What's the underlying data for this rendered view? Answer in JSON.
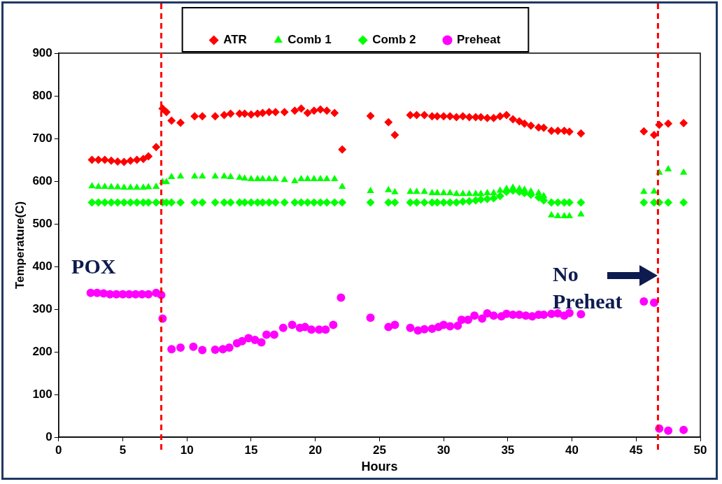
{
  "chart_data": {
    "type": "scatter",
    "xlabel": "Hours",
    "ylabel": "Temperature(C)",
    "xlim": [
      0,
      50
    ],
    "xticks": [
      0,
      5,
      10,
      15,
      20,
      25,
      30,
      35,
      40,
      45,
      50
    ],
    "ylim": [
      0,
      900
    ],
    "yticks": [
      0,
      100,
      200,
      300,
      400,
      500,
      600,
      700,
      800,
      900
    ],
    "grid": false,
    "legend": "top",
    "series": [
      {
        "name": "ATR",
        "color": "#ff0000",
        "marker": "diamond",
        "x": [
          2.6,
          3.1,
          3.6,
          4.1,
          4.6,
          5.1,
          5.6,
          6.1,
          6.6,
          7.0,
          7.6,
          8.1,
          8.4,
          8.8,
          9.5,
          10.6,
          11.2,
          12.2,
          12.9,
          13.4,
          14.1,
          14.5,
          15.0,
          15.5,
          15.9,
          16.4,
          16.9,
          17.6,
          18.4,
          18.9,
          19.4,
          19.9,
          20.4,
          20.9,
          21.5,
          22.1,
          24.3,
          25.7,
          26.2,
          27.4,
          27.9,
          28.5,
          29.1,
          29.5,
          30.0,
          30.5,
          31.0,
          31.5,
          32.0,
          32.5,
          32.9,
          33.4,
          33.9,
          34.4,
          34.9,
          35.4,
          35.9,
          36.3,
          36.8,
          37.4,
          37.8,
          38.4,
          38.9,
          39.4,
          39.8,
          40.7,
          45.6,
          46.4,
          46.8,
          47.5,
          48.7
        ],
        "values": [
          650,
          650,
          650,
          648,
          646,
          645,
          648,
          650,
          652,
          658,
          680,
          770,
          762,
          742,
          737,
          752,
          752,
          752,
          755,
          758,
          758,
          758,
          756,
          758,
          760,
          762,
          762,
          762,
          765,
          770,
          760,
          765,
          768,
          765,
          760,
          674,
          753,
          738,
          708,
          755,
          755,
          755,
          752,
          752,
          752,
          752,
          750,
          752,
          750,
          750,
          750,
          748,
          748,
          752,
          755,
          745,
          740,
          735,
          730,
          726,
          725,
          718,
          718,
          718,
          716,
          712,
          717,
          708,
          732,
          735,
          736
        ]
      },
      {
        "name": "Comb 1",
        "color": "#00ff00",
        "marker": "triangle",
        "x": [
          2.6,
          3.1,
          3.6,
          4.1,
          4.6,
          5.1,
          5.6,
          6.1,
          6.6,
          7.0,
          7.6,
          8.1,
          8.4,
          8.8,
          9.5,
          10.6,
          11.2,
          12.2,
          12.9,
          13.4,
          14.1,
          14.5,
          15.0,
          15.5,
          15.9,
          16.4,
          16.9,
          17.6,
          18.4,
          18.9,
          19.4,
          19.9,
          20.4,
          20.9,
          21.5,
          22.1,
          24.3,
          25.7,
          26.2,
          27.4,
          27.9,
          28.5,
          29.1,
          29.5,
          30.0,
          30.5,
          31.0,
          31.5,
          32.0,
          32.5,
          32.9,
          33.4,
          33.9,
          34.4,
          34.9,
          35.4,
          35.9,
          36.3,
          36.8,
          37.4,
          37.8,
          38.4,
          38.9,
          39.4,
          39.8,
          40.7,
          45.6,
          46.4,
          46.8,
          47.5,
          48.7
        ],
        "values": [
          588,
          587,
          587,
          586,
          586,
          585,
          585,
          585,
          585,
          586,
          587,
          598,
          598,
          610,
          611,
          611,
          611,
          611,
          611,
          610,
          608,
          606,
          605,
          605,
          605,
          605,
          605,
          603,
          600,
          605,
          605,
          605,
          605,
          605,
          605,
          587,
          577,
          579,
          574,
          575,
          575,
          575,
          572,
          572,
          572,
          572,
          570,
          570,
          570,
          570,
          570,
          572,
          572,
          578,
          582,
          585,
          582,
          580,
          576,
          572,
          565,
          520,
          518,
          518,
          518,
          522,
          575,
          576,
          620,
          628,
          620
        ]
      },
      {
        "name": "Comb 2",
        "color": "#00ff00",
        "marker": "diamond",
        "x": [
          2.6,
          3.1,
          3.6,
          4.1,
          4.6,
          5.1,
          5.6,
          6.1,
          6.6,
          7.0,
          7.6,
          8.1,
          8.4,
          8.8,
          9.5,
          10.6,
          11.2,
          12.2,
          12.9,
          13.4,
          14.1,
          14.5,
          15.0,
          15.5,
          15.9,
          16.4,
          16.9,
          17.6,
          18.4,
          18.9,
          19.4,
          19.9,
          20.4,
          20.9,
          21.5,
          22.1,
          24.3,
          25.7,
          26.2,
          27.4,
          27.9,
          28.5,
          29.1,
          29.5,
          30.0,
          30.5,
          31.0,
          31.5,
          32.0,
          32.5,
          32.9,
          33.4,
          33.9,
          34.4,
          34.9,
          35.4,
          35.9,
          36.3,
          36.8,
          37.4,
          37.8,
          38.4,
          38.9,
          39.4,
          39.8,
          40.7,
          45.6,
          46.4,
          46.8,
          47.5,
          48.7
        ],
        "values": [
          550,
          550,
          550,
          550,
          550,
          550,
          550,
          550,
          550,
          550,
          550,
          550,
          550,
          550,
          550,
          550,
          550,
          550,
          550,
          550,
          550,
          550,
          550,
          550,
          550,
          550,
          550,
          550,
          550,
          550,
          550,
          550,
          550,
          550,
          550,
          550,
          550,
          550,
          550,
          550,
          550,
          550,
          550,
          550,
          550,
          550,
          550,
          552,
          553,
          555,
          557,
          558,
          560,
          565,
          575,
          578,
          575,
          572,
          568,
          562,
          555,
          550,
          550,
          550,
          550,
          550,
          550,
          550,
          550,
          550,
          550
        ]
      },
      {
        "name": "Preheat",
        "color": "#ff00ff",
        "marker": "circle",
        "x": [
          2.5,
          3.0,
          3.5,
          4.0,
          4.5,
          5.0,
          5.5,
          6.0,
          6.5,
          7.0,
          7.6,
          8.0,
          8.1,
          8.8,
          9.5,
          10.5,
          11.2,
          12.2,
          12.8,
          13.3,
          13.9,
          14.3,
          14.8,
          15.3,
          15.8,
          16.2,
          16.8,
          17.5,
          18.2,
          18.8,
          19.2,
          19.7,
          20.3,
          20.8,
          21.4,
          22.0,
          24.3,
          25.7,
          26.2,
          27.4,
          28.0,
          28.5,
          29.1,
          29.6,
          30.0,
          30.5,
          31.1,
          31.4,
          31.9,
          32.4,
          33.0,
          33.4,
          33.9,
          34.5,
          34.9,
          35.4,
          35.9,
          36.4,
          36.9,
          37.4,
          37.8,
          38.4,
          38.9,
          39.4,
          39.8,
          40.7,
          45.6,
          46.4,
          46.8,
          47.5,
          48.7
        ],
        "values": [
          338,
          338,
          337,
          335,
          335,
          335,
          335,
          335,
          335,
          335,
          338,
          333,
          278,
          206,
          210,
          212,
          204,
          205,
          206,
          210,
          220,
          225,
          232,
          228,
          222,
          240,
          240,
          256,
          263,
          256,
          258,
          252,
          252,
          252,
          263,
          327,
          280,
          258,
          263,
          256,
          250,
          253,
          254,
          258,
          263,
          260,
          261,
          275,
          275,
          285,
          278,
          290,
          285,
          283,
          289,
          287,
          287,
          285,
          283,
          287,
          287,
          289,
          290,
          285,
          291,
          288,
          318,
          315,
          20,
          15,
          17
        ]
      }
    ],
    "ref_lines": [
      {
        "axis": "x",
        "value": 8,
        "color": "#ff0000",
        "line_style": "dashed"
      },
      {
        "axis": "x",
        "value": 46.7,
        "color": "#ff0000",
        "line_style": "dashed"
      }
    ],
    "annotations": [
      "POX",
      "No Preheat"
    ]
  }
}
